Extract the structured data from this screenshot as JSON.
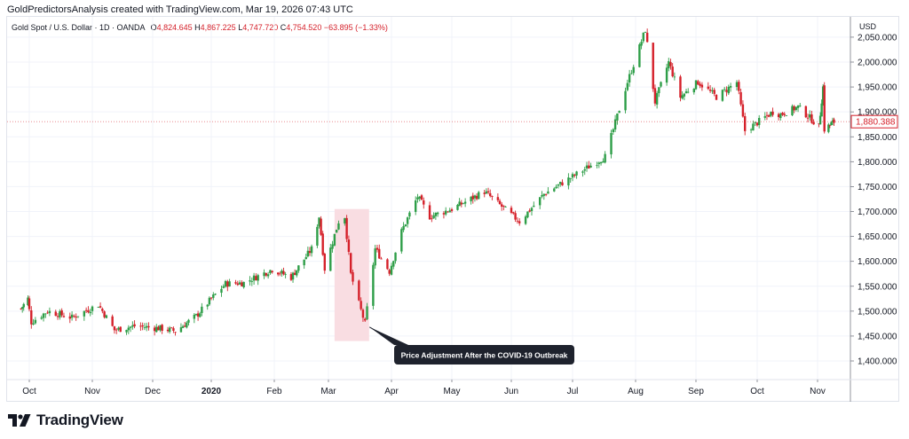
{
  "header": {
    "credit": "GoldPredictorsAnalysis created with TradingView.com, Mar 19, 2026 07:43 UTC"
  },
  "legend": {
    "symbol": "Gold Spot / U.S. Dollar · 1D · OANDA",
    "o_label": "O",
    "o_value": "4,824.645",
    "h_label": "H",
    "h_value": "4,867.225",
    "l_label": "L",
    "l_value": "4,747.720",
    "c_label": "C",
    "c_value": "4,754.520",
    "change": "−63.895 (−1.33%)"
  },
  "axis": {
    "currency": "USD",
    "price_ticks": [
      "2,050.000",
      "2,000.000",
      "1,950.000",
      "1,900.000",
      "1,850.000",
      "1,800.000",
      "1,750.000",
      "1,700.000",
      "1,650.000",
      "1,600.000",
      "1,550.000",
      "1,500.000",
      "1,450.000",
      "1,400.000"
    ],
    "last_price": "1,880.388",
    "time_ticks": [
      "Oct",
      "Nov",
      "Dec",
      "2020",
      "Feb",
      "Mar",
      "Apr",
      "May",
      "Jun",
      "Jul",
      "Aug",
      "Sep",
      "Oct",
      "Nov"
    ]
  },
  "annotation": {
    "text": "Price Adjustment After the COVID-19 Outbreak"
  },
  "footer": {
    "brand": "TradingView"
  },
  "colors": {
    "up": "#26a69a",
    "up_candle": "#2e9e48",
    "down": "#d5202a",
    "highlight": "#f9dde2",
    "callout_bg": "#1e222d",
    "grid": "#f0f3fa"
  },
  "chart_data": {
    "type": "candlestick",
    "title": "Gold Spot / U.S. Dollar · 1D · OANDA",
    "ylabel": "USD",
    "ylim": [
      1380,
      2090
    ],
    "y_ticks": [
      2050,
      2000,
      1950,
      1900,
      1850,
      1800,
      1750,
      1700,
      1650,
      1600,
      1550,
      1500,
      1450,
      1400
    ],
    "x_ticks": [
      "Oct",
      "Nov",
      "Dec",
      "2020",
      "Feb",
      "Mar",
      "Apr",
      "May",
      "Jun",
      "Jul",
      "Aug",
      "Sep",
      "Oct",
      "Nov"
    ],
    "last_price": 1880.388,
    "highlight_range_price": [
      1440,
      1705
    ],
    "close_path": [
      {
        "date": "2019-09-25",
        "close": 1505
      },
      {
        "date": "2019-09-30",
        "close": 1525
      },
      {
        "date": "2019-10-02",
        "close": 1478
      },
      {
        "date": "2019-10-10",
        "close": 1500
      },
      {
        "date": "2019-10-22",
        "close": 1487
      },
      {
        "date": "2019-11-04",
        "close": 1513
      },
      {
        "date": "2019-11-12",
        "close": 1462
      },
      {
        "date": "2019-11-22",
        "close": 1470
      },
      {
        "date": "2019-12-06",
        "close": 1465
      },
      {
        "date": "2019-12-13",
        "close": 1460
      },
      {
        "date": "2019-12-24",
        "close": 1490
      },
      {
        "date": "2020-01-08",
        "close": 1555
      },
      {
        "date": "2020-01-17",
        "close": 1557
      },
      {
        "date": "2020-01-31",
        "close": 1584
      },
      {
        "date": "2020-02-10",
        "close": 1568
      },
      {
        "date": "2020-02-21",
        "close": 1625
      },
      {
        "date": "2020-02-25",
        "close": 1690
      },
      {
        "date": "2020-02-28",
        "close": 1585
      },
      {
        "date": "2020-03-06",
        "close": 1680
      },
      {
        "date": "2020-03-09",
        "close": 1690
      },
      {
        "date": "2020-03-12",
        "close": 1574
      },
      {
        "date": "2020-03-16",
        "close": 1515
      },
      {
        "date": "2020-03-19",
        "close": 1475
      },
      {
        "date": "2020-03-24",
        "close": 1625
      },
      {
        "date": "2020-03-31",
        "close": 1580
      },
      {
        "date": "2020-04-06",
        "close": 1660
      },
      {
        "date": "2020-04-14",
        "close": 1730
      },
      {
        "date": "2020-04-20",
        "close": 1690
      },
      {
        "date": "2020-05-01",
        "close": 1705
      },
      {
        "date": "2020-05-18",
        "close": 1740
      },
      {
        "date": "2020-06-05",
        "close": 1680
      },
      {
        "date": "2020-06-17",
        "close": 1735
      },
      {
        "date": "2020-07-01",
        "close": 1770
      },
      {
        "date": "2020-07-17",
        "close": 1810
      },
      {
        "date": "2020-07-28",
        "close": 1960
      },
      {
        "date": "2020-08-06",
        "close": 2065
      },
      {
        "date": "2020-08-11",
        "close": 1920
      },
      {
        "date": "2020-08-18",
        "close": 2000
      },
      {
        "date": "2020-08-24",
        "close": 1930
      },
      {
        "date": "2020-09-02",
        "close": 1960
      },
      {
        "date": "2020-09-11",
        "close": 1930
      },
      {
        "date": "2020-09-21",
        "close": 1960
      },
      {
        "date": "2020-09-25",
        "close": 1862
      },
      {
        "date": "2020-10-09",
        "close": 1900
      },
      {
        "date": "2020-10-13",
        "close": 1895
      },
      {
        "date": "2020-10-22",
        "close": 1910
      },
      {
        "date": "2020-11-02",
        "close": 1870
      },
      {
        "date": "2020-11-05",
        "close": 1950
      },
      {
        "date": "2020-11-06",
        "close": 1865
      },
      {
        "date": "2020-11-13",
        "close": 1880
      }
    ]
  }
}
